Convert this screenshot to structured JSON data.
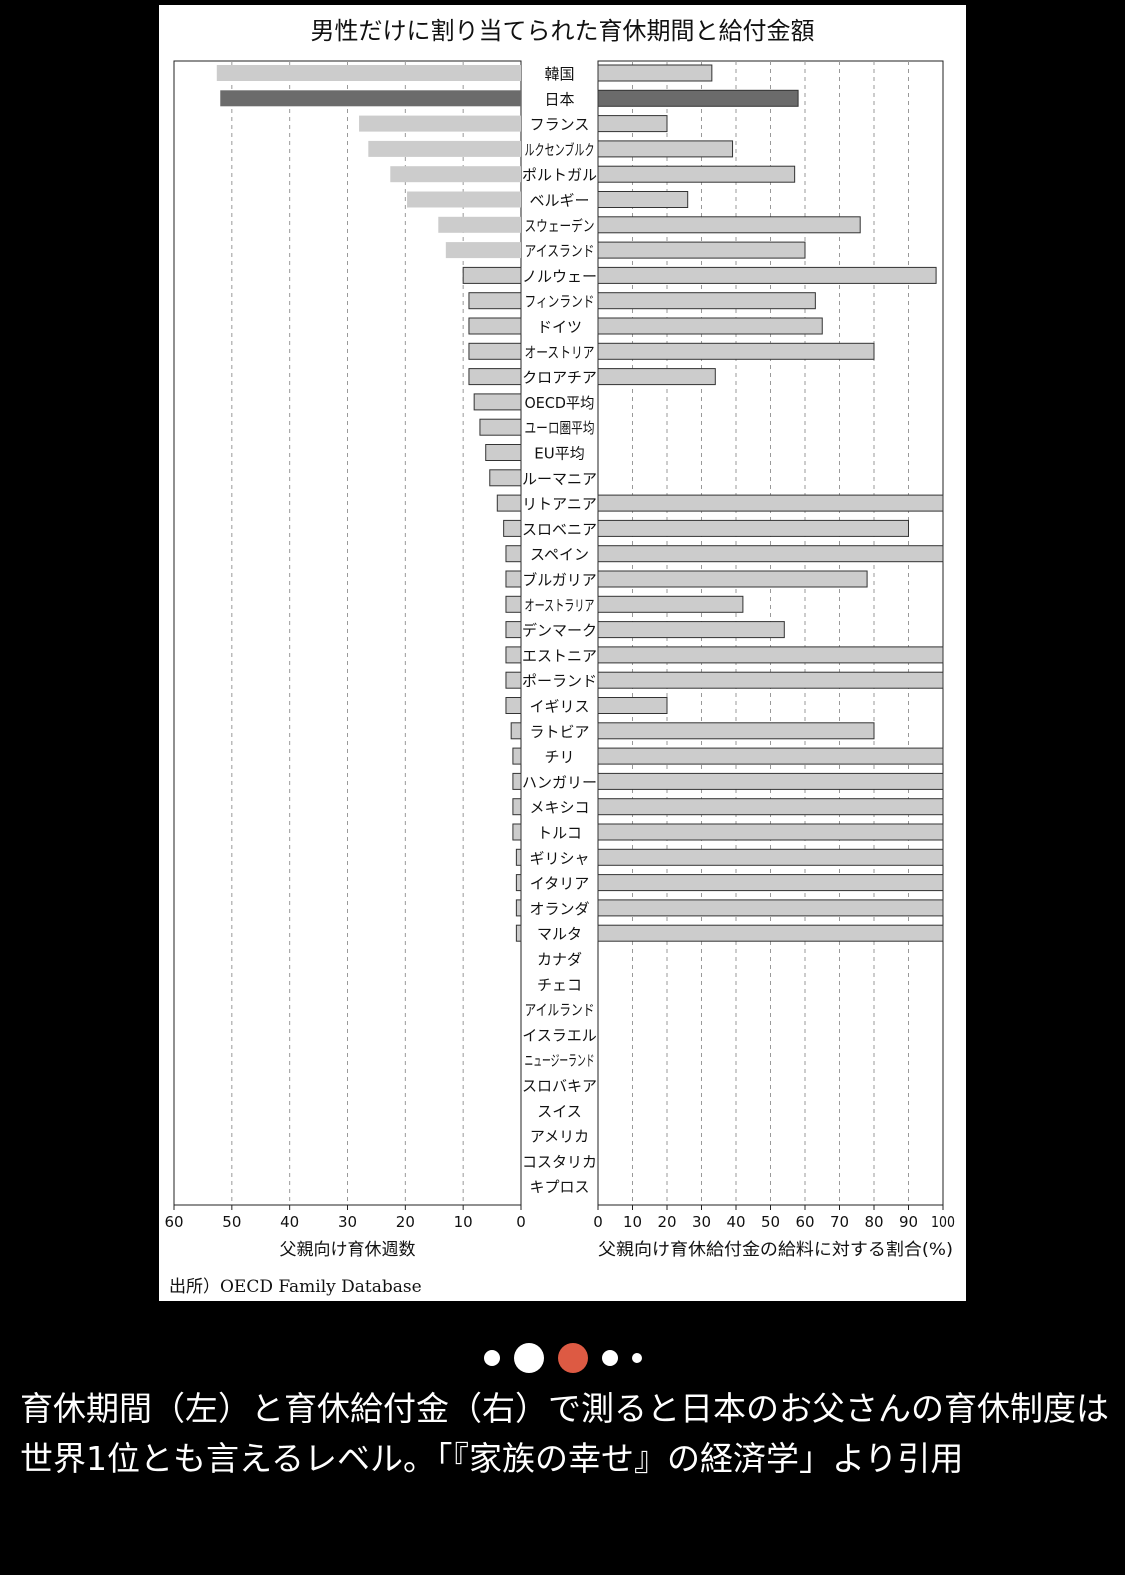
{
  "chart_data": {
    "type": "bar",
    "title": "男性だけに割り当てられた育休期間と給付金額",
    "source": "出所）OECD Family Database",
    "categories": [
      "韓国",
      "日本",
      "フランス",
      "ルクセンブルク",
      "ポルトガル",
      "ベルギー",
      "スウェーデン",
      "アイスランド",
      "ノルウェー",
      "フィンランド",
      "ドイツ",
      "オーストリア",
      "クロアチア",
      "OECD平均",
      "ユーロ圏平均",
      "EU平均",
      "ルーマニア",
      "リトアニア",
      "スロベニア",
      "スペイン",
      "ブルガリア",
      "オーストラリア",
      "デンマーク",
      "エストニア",
      "ポーランド",
      "イギリス",
      "ラトビア",
      "チリ",
      "ハンガリー",
      "メキシコ",
      "トルコ",
      "ギリシャ",
      "イタリア",
      "オランダ",
      "マルタ",
      "カナダ",
      "チェコ",
      "アイルランド",
      "イスラエル",
      "ニュージーランド",
      "スロバキア",
      "スイス",
      "アメリカ",
      "コスタリカ",
      "キプロス"
    ],
    "highlight": "日本",
    "left_axis": {
      "label": "父親向け育休週数",
      "ticks": [
        60,
        50,
        40,
        30,
        20,
        10,
        0
      ],
      "range": [
        0,
        60
      ]
    },
    "right_axis": {
      "label": "父親向け育休給付金の給料に対する割合(%)",
      "ticks": [
        0,
        10,
        20,
        30,
        40,
        50,
        60,
        70,
        80,
        90,
        100
      ],
      "range": [
        0,
        100
      ]
    },
    "series": [
      {
        "name": "父親向け育休週数",
        "values": [
          52.6,
          52.0,
          28.0,
          26.4,
          22.6,
          19.7,
          14.3,
          13.0,
          10.0,
          9.0,
          9.0,
          9.0,
          9.0,
          8.1,
          7.1,
          6.1,
          5.4,
          4.1,
          3.0,
          2.6,
          2.6,
          2.6,
          2.6,
          2.6,
          2.6,
          2.6,
          1.7,
          1.4,
          1.4,
          1.4,
          1.4,
          0.8,
          0.8,
          0.8,
          0.8,
          0,
          0,
          0,
          0,
          0,
          0,
          0,
          0,
          0,
          0
        ]
      },
      {
        "name": "父親向け育休給付金の給料に対する割合(%)",
        "values": [
          33,
          58,
          20,
          39,
          57,
          26,
          76,
          60,
          98,
          63,
          65,
          80,
          34,
          0,
          0,
          0,
          0,
          100,
          90,
          100,
          78,
          42,
          54,
          100,
          100,
          20,
          80,
          100,
          100,
          100,
          100,
          100,
          100,
          100,
          100,
          0,
          0,
          0,
          0,
          0,
          0,
          0,
          0,
          0,
          0
        ]
      }
    ],
    "grid": "vertical dashed",
    "colors": {
      "bar": "#cccccc",
      "highlight": "#6b6b6b",
      "outline": "#333333"
    }
  },
  "pager": {
    "count": 5,
    "active_index": 2,
    "active_color": "#dd5a43"
  },
  "caption": "育休期間（左）と育休給付金（右）で測ると日本のお父さんの育休制度は世界1位とも言えるレベル。「『家族の幸せ』の経済学」より引用"
}
